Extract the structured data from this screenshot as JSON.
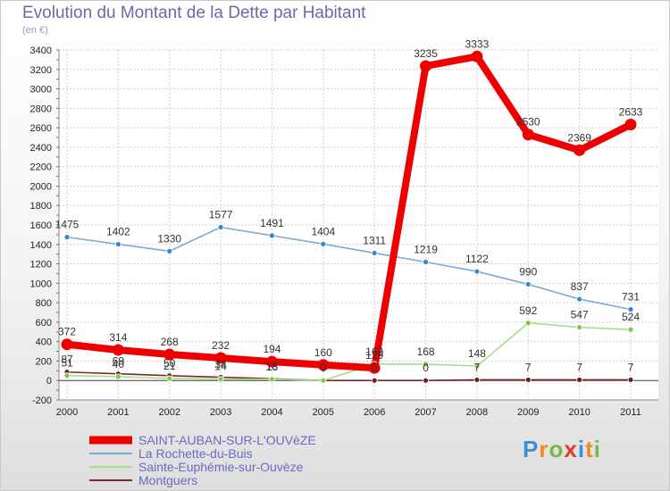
{
  "title": "Evolution du Montant de la Dette par Habitant",
  "unit_label": "(en €)",
  "logo": {
    "text": "Proxiti",
    "letter_colors": [
      "#3a8fd6",
      "#f08a1c",
      "#78b844",
      "#e23a2a",
      "#3a8fd6",
      "#f08a1c",
      "#78b844"
    ]
  },
  "chart_data": {
    "type": "line",
    "title": "Evolution du Montant de la Dette par Habitant",
    "ylabel": "(en €)",
    "xlabel": "",
    "categories": [
      "2000",
      "2001",
      "2002",
      "2003",
      "2004",
      "2005",
      "2006",
      "2007",
      "2008",
      "2009",
      "2010",
      "2011"
    ],
    "ylim": [
      -200,
      3400
    ],
    "yticks": [
      -200,
      0,
      200,
      400,
      600,
      800,
      1000,
      1200,
      1400,
      1600,
      1800,
      2000,
      2200,
      2400,
      2600,
      2800,
      3000,
      3200,
      3400
    ],
    "grid": true,
    "legend_position": "bottom-left",
    "series": [
      {
        "name": "SAINT-AUBAN-SUR-L'OUVèZE",
        "color": "#ee0000",
        "point_color": "#ee0000",
        "width": 8,
        "values": [
          372,
          314,
          268,
          232,
          194,
          160,
          129,
          3235,
          3333,
          2530,
          2369,
          2633
        ],
        "labels": [
          "372",
          "314",
          "268",
          "232",
          "194",
          "160",
          "129",
          "3235",
          "3333",
          "2530",
          "2369",
          "2633"
        ]
      },
      {
        "name": "La Rochette-du-Buis",
        "color": "#7aaad8",
        "point_color": "#3a85cf",
        "width": 1.6,
        "values": [
          1475,
          1402,
          1330,
          1577,
          1491,
          1404,
          1311,
          1219,
          1122,
          990,
          837,
          731
        ],
        "labels": [
          "1475",
          "1402",
          "1330",
          "1577",
          "1491",
          "1404",
          "1311",
          "1219",
          "1122",
          "990",
          "837",
          "731"
        ]
      },
      {
        "name": "Sainte-Euphémie-sur-Ouvèze",
        "color": "#a6dd8a",
        "point_color": "#7acc44",
        "width": 1.6,
        "values": [
          51,
          40,
          21,
          14,
          13,
          0,
          169,
          168,
          148,
          592,
          547,
          524
        ],
        "labels": [
          "51",
          "40",
          "21",
          "14",
          "13",
          "0",
          "169",
          "168",
          "148",
          "592",
          "547",
          "524"
        ]
      },
      {
        "name": "Montguers",
        "color": "#7a2a2a",
        "point_color": "#6a1f1f",
        "width": 1.6,
        "values": [
          87,
          69,
          50,
          34,
          18,
          0,
          0,
          0,
          7,
          7,
          7,
          7
        ],
        "labels": [
          "87",
          "69",
          "50",
          "34",
          "18",
          "0",
          "0",
          "0",
          "7",
          "7",
          "7",
          "7"
        ]
      }
    ]
  }
}
